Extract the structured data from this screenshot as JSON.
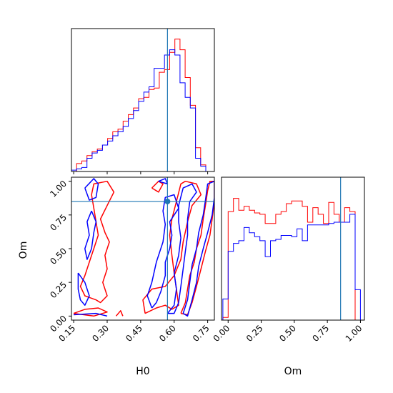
{
  "chart_data": {
    "type": "corner",
    "colors": {
      "series_a": "#ff0000",
      "series_b": "#0000ff",
      "truth": "#1f77b4",
      "axes": "#000000"
    },
    "parameters": [
      "H0",
      "Om"
    ],
    "truth": {
      "H0": 0.57,
      "Om": 0.85
    },
    "panels": [
      {
        "id": "hist-H0",
        "type": "histogram",
        "parameter": "H0",
        "xlim": [
          0.14,
          0.78
        ],
        "ylim": [
          0,
          1.08
        ],
        "bin_edges": [
          0.14,
          0.1631,
          0.1863,
          0.2094,
          0.2326,
          0.2557,
          0.2789,
          0.302,
          0.3251,
          0.3483,
          0.3714,
          0.3946,
          0.4177,
          0.4409,
          0.464,
          0.4871,
          0.5103,
          0.5334,
          0.5566,
          0.5797,
          0.6029,
          0.626,
          0.6491,
          0.6723,
          0.6954,
          0.7186,
          0.7417
        ],
        "series": [
          {
            "name": "",
            "color": "#ff0000",
            "values": [
              0.0,
              0.06,
              0.08,
              0.12,
              0.15,
              0.17,
              0.2,
              0.25,
              0.3,
              0.32,
              0.38,
              0.43,
              0.48,
              0.55,
              0.56,
              0.62,
              0.63,
              0.75,
              0.77,
              0.9,
              1.0,
              0.92,
              0.71,
              0.5,
              0.18,
              0.05
            ]
          },
          {
            "name": "",
            "color": "#0000ff",
            "values": [
              0.01,
              0.02,
              0.03,
              0.1,
              0.14,
              0.16,
              0.2,
              0.23,
              0.27,
              0.3,
              0.34,
              0.4,
              0.46,
              0.53,
              0.6,
              0.64,
              0.78,
              0.78,
              0.88,
              0.92,
              0.88,
              0.67,
              0.56,
              0.48,
              0.1,
              0.04
            ]
          }
        ]
      },
      {
        "id": "contour-H0-Om",
        "type": "contour",
        "xlabel": "H0",
        "ylabel": "Om",
        "xlim": [
          0.14,
          0.78
        ],
        "ylim": [
          -0.03,
          1.03
        ],
        "xticks": [
          "0.15",
          "0.30",
          "0.45",
          "0.60",
          "0.75"
        ],
        "yticks": [
          "0.00",
          "0.25",
          "0.50",
          "0.75",
          "1.00"
        ],
        "xtick_values": [
          0.15,
          0.3,
          0.45,
          0.6,
          0.75
        ],
        "ytick_values": [
          0.0,
          0.25,
          0.5,
          0.75,
          1.0
        ],
        "contours": [
          {
            "color": "#ff0000",
            "points": [
              [
                0.63,
                0.02
              ],
              [
                0.65,
                0.1
              ],
              [
                0.66,
                0.2
              ],
              [
                0.67,
                0.3
              ],
              [
                0.69,
                0.4
              ],
              [
                0.7,
                0.5
              ],
              [
                0.72,
                0.6
              ],
              [
                0.73,
                0.72
              ],
              [
                0.74,
                0.82
              ],
              [
                0.75,
                0.93
              ],
              [
                0.76,
                1.0
              ],
              [
                0.78,
                1.0
              ],
              [
                0.78,
                0.85
              ],
              [
                0.77,
                0.72
              ],
              [
                0.76,
                0.6
              ],
              [
                0.74,
                0.48
              ],
              [
                0.72,
                0.35
              ],
              [
                0.7,
                0.22
              ],
              [
                0.68,
                0.1
              ],
              [
                0.66,
                0.01
              ],
              [
                0.63,
                0.02
              ]
            ]
          },
          {
            "color": "#ff0000",
            "points": [
              [
                0.47,
                0.02
              ],
              [
                0.52,
                0.06
              ],
              [
                0.56,
                0.08
              ],
              [
                0.59,
                0.05
              ],
              [
                0.62,
                0.08
              ],
              [
                0.61,
                0.2
              ],
              [
                0.6,
                0.32
              ],
              [
                0.59,
                0.45
              ],
              [
                0.58,
                0.6
              ],
              [
                0.59,
                0.72
              ],
              [
                0.61,
                0.85
              ],
              [
                0.63,
                0.98
              ],
              [
                0.65,
                1.0
              ],
              [
                0.7,
                0.98
              ],
              [
                0.72,
                0.9
              ],
              [
                0.68,
                0.82
              ],
              [
                0.66,
                0.7
              ],
              [
                0.64,
                0.55
              ],
              [
                0.63,
                0.42
              ],
              [
                0.6,
                0.3
              ],
              [
                0.56,
                0.22
              ],
              [
                0.5,
                0.2
              ],
              [
                0.46,
                0.12
              ],
              [
                0.47,
                0.02
              ]
            ]
          },
          {
            "color": "#ff0000",
            "points": [
              [
                0.5,
                0.95
              ],
              [
                0.53,
                1.0
              ],
              [
                0.55,
                0.98
              ],
              [
                0.53,
                0.92
              ],
              [
                0.5,
                0.95
              ]
            ]
          },
          {
            "color": "#ff0000",
            "points": [
              [
                0.25,
                0.12
              ],
              [
                0.2,
                0.15
              ],
              [
                0.18,
                0.22
              ],
              [
                0.2,
                0.3
              ],
              [
                0.22,
                0.4
              ],
              [
                0.24,
                0.5
              ],
              [
                0.26,
                0.6
              ],
              [
                0.25,
                0.7
              ],
              [
                0.24,
                0.8
              ],
              [
                0.23,
                0.9
              ],
              [
                0.24,
                0.98
              ],
              [
                0.3,
                1.0
              ],
              [
                0.33,
                0.92
              ],
              [
                0.3,
                0.82
              ],
              [
                0.27,
                0.72
              ],
              [
                0.29,
                0.62
              ],
              [
                0.31,
                0.55
              ],
              [
                0.29,
                0.45
              ],
              [
                0.3,
                0.35
              ],
              [
                0.28,
                0.25
              ],
              [
                0.3,
                0.15
              ],
              [
                0.27,
                0.1
              ],
              [
                0.25,
                0.12
              ]
            ]
          },
          {
            "color": "#ff0000",
            "points": [
              [
                0.15,
                0.02
              ],
              [
                0.2,
                0.05
              ],
              [
                0.26,
                0.06
              ],
              [
                0.3,
                0.03
              ],
              [
                0.24,
                0.0
              ],
              [
                0.15,
                0.02
              ]
            ]
          },
          {
            "color": "#ff0000",
            "points": [
              [
                0.34,
                0.0
              ],
              [
                0.36,
                0.04
              ],
              [
                0.37,
                0.0
              ]
            ]
          },
          {
            "color": "#0000ff",
            "points": [
              [
                0.64,
                0.02
              ],
              [
                0.66,
                0.12
              ],
              [
                0.67,
                0.25
              ],
              [
                0.68,
                0.38
              ],
              [
                0.7,
                0.5
              ],
              [
                0.71,
                0.62
              ],
              [
                0.73,
                0.75
              ],
              [
                0.74,
                0.86
              ],
              [
                0.75,
                0.98
              ],
              [
                0.78,
                1.0
              ],
              [
                0.78,
                0.88
              ],
              [
                0.77,
                0.75
              ],
              [
                0.75,
                0.62
              ],
              [
                0.73,
                0.5
              ],
              [
                0.71,
                0.37
              ],
              [
                0.7,
                0.25
              ],
              [
                0.68,
                0.12
              ],
              [
                0.66,
                0.0
              ],
              [
                0.64,
                0.02
              ]
            ]
          },
          {
            "color": "#0000ff",
            "points": [
              [
                0.57,
                0.02
              ],
              [
                0.6,
                0.08
              ],
              [
                0.61,
                0.2
              ],
              [
                0.6,
                0.32
              ],
              [
                0.62,
                0.45
              ],
              [
                0.63,
                0.58
              ],
              [
                0.62,
                0.7
              ],
              [
                0.62,
                0.82
              ],
              [
                0.64,
                0.95
              ],
              [
                0.68,
                0.98
              ],
              [
                0.7,
                0.92
              ],
              [
                0.67,
                0.85
              ],
              [
                0.66,
                0.72
              ],
              [
                0.66,
                0.6
              ],
              [
                0.65,
                0.48
              ],
              [
                0.64,
                0.35
              ],
              [
                0.63,
                0.22
              ],
              [
                0.62,
                0.1
              ],
              [
                0.6,
                0.02
              ],
              [
                0.57,
                0.02
              ]
            ]
          },
          {
            "color": "#0000ff",
            "points": [
              [
                0.5,
                0.06
              ],
              [
                0.48,
                0.15
              ],
              [
                0.5,
                0.25
              ],
              [
                0.52,
                0.4
              ],
              [
                0.55,
                0.55
              ],
              [
                0.56,
                0.68
              ],
              [
                0.55,
                0.78
              ],
              [
                0.56,
                0.88
              ],
              [
                0.6,
                0.9
              ],
              [
                0.62,
                0.8
              ],
              [
                0.58,
                0.7
              ],
              [
                0.59,
                0.6
              ],
              [
                0.58,
                0.5
              ],
              [
                0.56,
                0.4
              ],
              [
                0.56,
                0.3
              ],
              [
                0.54,
                0.18
              ],
              [
                0.52,
                0.1
              ],
              [
                0.5,
                0.06
              ]
            ]
          },
          {
            "color": "#0000ff",
            "points": [
              [
                0.2,
                0.95
              ],
              [
                0.22,
                0.86
              ],
              [
                0.25,
                0.88
              ],
              [
                0.26,
                0.98
              ],
              [
                0.24,
                1.02
              ],
              [
                0.2,
                0.95
              ]
            ]
          },
          {
            "color": "#0000ff",
            "points": [
              [
                0.23,
                0.78
              ],
              [
                0.21,
                0.7
              ],
              [
                0.22,
                0.6
              ],
              [
                0.2,
                0.5
              ],
              [
                0.21,
                0.42
              ],
              [
                0.23,
                0.5
              ],
              [
                0.24,
                0.62
              ],
              [
                0.25,
                0.7
              ],
              [
                0.23,
                0.78
              ]
            ]
          },
          {
            "color": "#0000ff",
            "points": [
              [
                0.17,
                0.32
              ],
              [
                0.2,
                0.25
              ],
              [
                0.22,
                0.15
              ],
              [
                0.2,
                0.08
              ],
              [
                0.18,
                0.12
              ],
              [
                0.17,
                0.2
              ],
              [
                0.17,
                0.32
              ]
            ]
          },
          {
            "color": "#0000ff",
            "points": [
              [
                0.15,
                0.01
              ],
              [
                0.25,
                0.02
              ],
              [
                0.3,
                0.0
              ]
            ]
          },
          {
            "color": "#0000ff",
            "points": [
              [
                0.53,
                1.0
              ],
              [
                0.57,
                0.98
              ],
              [
                0.56,
                1.02
              ],
              [
                0.53,
                1.0
              ]
            ]
          }
        ]
      },
      {
        "id": "hist-Om",
        "type": "histogram",
        "parameter": "Om",
        "xlabel": "Om",
        "xlim": [
          -0.05,
          1.03
        ],
        "ylim": [
          0,
          1.08
        ],
        "xticks": [
          "0.00",
          "0.25",
          "0.50",
          "0.75",
          "1.00"
        ],
        "xtick_values": [
          0.0,
          0.25,
          0.5,
          0.75,
          1.0
        ],
        "bin_edges": [
          -0.04,
          0.0,
          0.04,
          0.08,
          0.12,
          0.16,
          0.2,
          0.24,
          0.28,
          0.32,
          0.36,
          0.4,
          0.44,
          0.48,
          0.52,
          0.56,
          0.6,
          0.64,
          0.68,
          0.72,
          0.76,
          0.8,
          0.84,
          0.88,
          0.92,
          0.96,
          1.0
        ],
        "series": [
          {
            "name": "",
            "color": "#ff0000",
            "values": [
              0.02,
              0.82,
              0.92,
              0.83,
              0.86,
              0.83,
              0.81,
              0.8,
              0.73,
              0.73,
              0.8,
              0.82,
              0.88,
              0.9,
              0.9,
              0.86,
              0.74,
              0.85,
              0.8,
              0.73,
              0.89,
              0.8,
              0.74,
              0.85,
              0.82,
              0.0
            ]
          },
          {
            "name": "",
            "color": "#0000ff",
            "values": [
              0.16,
              0.52,
              0.58,
              0.6,
              0.7,
              0.66,
              0.63,
              0.6,
              0.48,
              0.6,
              0.61,
              0.64,
              0.64,
              0.63,
              0.69,
              0.6,
              0.72,
              0.72,
              0.72,
              0.72,
              0.73,
              0.74,
              0.74,
              0.74,
              0.8,
              0.23
            ]
          }
        ]
      }
    ]
  }
}
